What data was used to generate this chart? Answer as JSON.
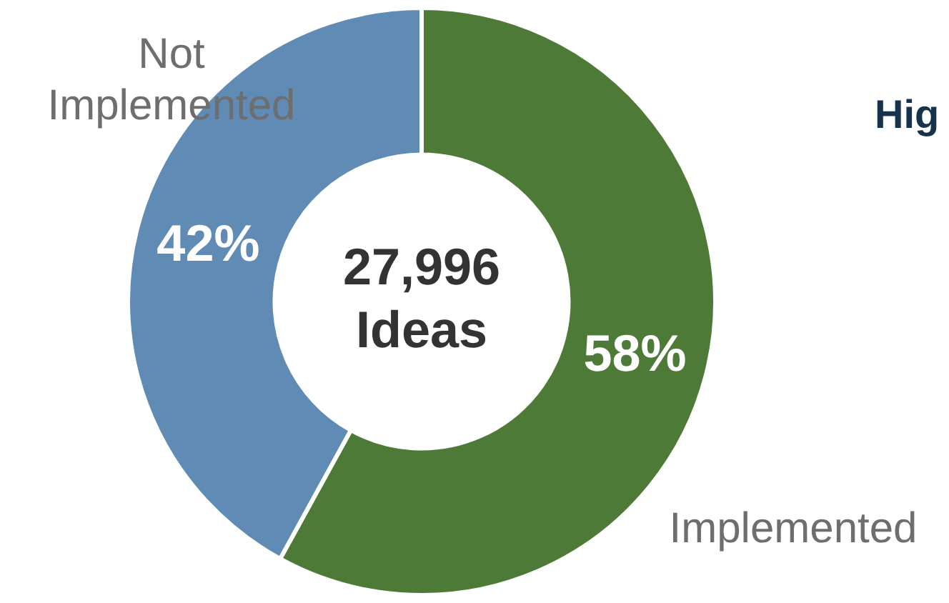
{
  "chart_data": {
    "type": "donut",
    "title": "Hig",
    "categories": [
      "Implemented",
      "Not Implemented"
    ],
    "values": [
      58,
      42
    ],
    "colors": [
      "#4e7a37",
      "#5f8bb5"
    ],
    "value_labels": [
      "58%",
      "42%"
    ],
    "legend": false,
    "annotations": [
      "27,996 Ideas"
    ]
  }
}
